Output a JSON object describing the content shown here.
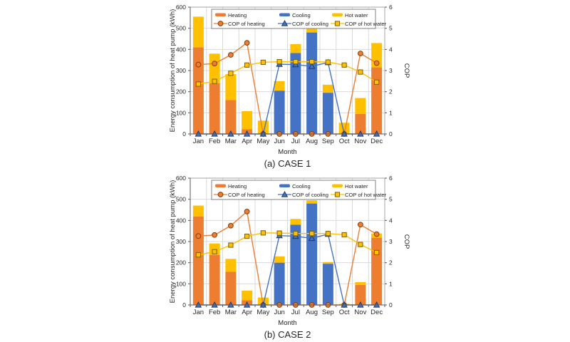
{
  "page_background": "#ffffff",
  "colors": {
    "heating": "#ED7D31",
    "cooling": "#4472C4",
    "hot_water": "#FFC000",
    "heating_marker_edge": "#843C0C",
    "cooling_marker_edge": "#1F3864",
    "hot_water_marker_edge": "#7F6000",
    "grid": "#D9D9D9",
    "plot_border": "#A6A6A6",
    "axis": "#595959",
    "text": "#262626",
    "legend_border": "#808080"
  },
  "chart_data": [
    {
      "type": "bar",
      "subtype": "stacked-bar-with-lines",
      "title": "(a) CASE 1",
      "xlabel": "Month",
      "ylabel_left": "Energy consumption of heat pump (kWh)",
      "ylabel_right": "COP",
      "ylim_left": [
        0,
        600
      ],
      "ytick_step_left": 100,
      "ylim_right": [
        0,
        6
      ],
      "ytick_step_right": 1,
      "grid": true,
      "legend_position": "top-inside",
      "categories": [
        "Jan",
        "Feb",
        "Mar",
        "Apr",
        "May",
        "Jun",
        "Jul",
        "Aug",
        "Sep",
        "Oct",
        "Nov",
        "Dec"
      ],
      "bar_series": [
        {
          "name": "Heating",
          "color": "#ED7D31",
          "values": [
            410,
            240,
            160,
            22,
            0,
            0,
            0,
            0,
            0,
            0,
            95,
            315
          ]
        },
        {
          "name": "Cooling",
          "color": "#4472C4",
          "values": [
            0,
            0,
            0,
            0,
            0,
            205,
            383,
            480,
            195,
            0,
            0,
            0
          ]
        },
        {
          "name": "Hot water",
          "color": "#FFC000",
          "values": [
            145,
            140,
            123,
            86,
            63,
            45,
            42,
            33,
            38,
            53,
            75,
            115
          ]
        }
      ],
      "line_series": [
        {
          "name": "COP of heating",
          "color": "#ED7D31",
          "marker": "circle",
          "edge": "#843C0C",
          "values": [
            3.28,
            3.33,
            3.74,
            4.31,
            0,
            0,
            0,
            0,
            0,
            0,
            3.81,
            3.35
          ]
        },
        {
          "name": "COP of cooling",
          "color": "#4472C4",
          "marker": "triangle",
          "edge": "#1F3864",
          "values": [
            0,
            0,
            0,
            0,
            0,
            3.3,
            3.28,
            3.2,
            3.38,
            0,
            0,
            0
          ]
        },
        {
          "name": "COP of hot water",
          "color": "#FFC000",
          "marker": "square",
          "edge": "#7F6000",
          "values": [
            2.36,
            2.49,
            2.87,
            3.26,
            3.39,
            3.42,
            3.42,
            3.42,
            3.4,
            3.26,
            2.93,
            2.45
          ]
        }
      ]
    },
    {
      "type": "bar",
      "subtype": "stacked-bar-with-lines",
      "title": "(b) CASE 2",
      "xlabel": "Month",
      "ylabel_left": "Energy consumption of heat pump (kWh)",
      "ylabel_right": "COP",
      "ylim_left": [
        0,
        600
      ],
      "ytick_step_left": 100,
      "ylim_right": [
        0,
        6
      ],
      "ytick_step_right": 1,
      "grid": true,
      "legend_position": "top-inside",
      "categories": [
        "Jan",
        "Feb",
        "Mar",
        "Apr",
        "May",
        "Jun",
        "Jul",
        "Aug",
        "Sep",
        "Oct",
        "Nov",
        "Dec"
      ],
      "bar_series": [
        {
          "name": "Heating",
          "color": "#ED7D31",
          "values": [
            418,
            236,
            157,
            22,
            0,
            0,
            0,
            0,
            0,
            0,
            95,
            318
          ]
        },
        {
          "name": "Cooling",
          "color": "#4472C4",
          "values": [
            0,
            0,
            0,
            0,
            0,
            200,
            380,
            480,
            195,
            0,
            0,
            0
          ]
        },
        {
          "name": "Hot water",
          "color": "#FFC000",
          "values": [
            52,
            55,
            61,
            46,
            35,
            30,
            27,
            15,
            8,
            5,
            13,
            20
          ]
        }
      ],
      "line_series": [
        {
          "name": "COP of heating",
          "color": "#ED7D31",
          "marker": "circle",
          "edge": "#843C0C",
          "values": [
            3.26,
            3.31,
            3.75,
            4.42,
            0,
            0,
            0,
            0,
            0,
            0,
            3.8,
            3.35
          ]
        },
        {
          "name": "COP of cooling",
          "color": "#4472C4",
          "marker": "triangle",
          "edge": "#1F3864",
          "values": [
            0,
            0,
            0,
            0,
            0,
            3.28,
            3.25,
            3.15,
            3.35,
            0,
            0,
            0
          ]
        },
        {
          "name": "COP of hot water",
          "color": "#FFC000",
          "marker": "square",
          "edge": "#7F6000",
          "values": [
            2.37,
            2.52,
            2.83,
            3.25,
            3.41,
            3.4,
            3.38,
            3.38,
            3.38,
            3.32,
            2.86,
            2.48
          ]
        }
      ]
    }
  ]
}
